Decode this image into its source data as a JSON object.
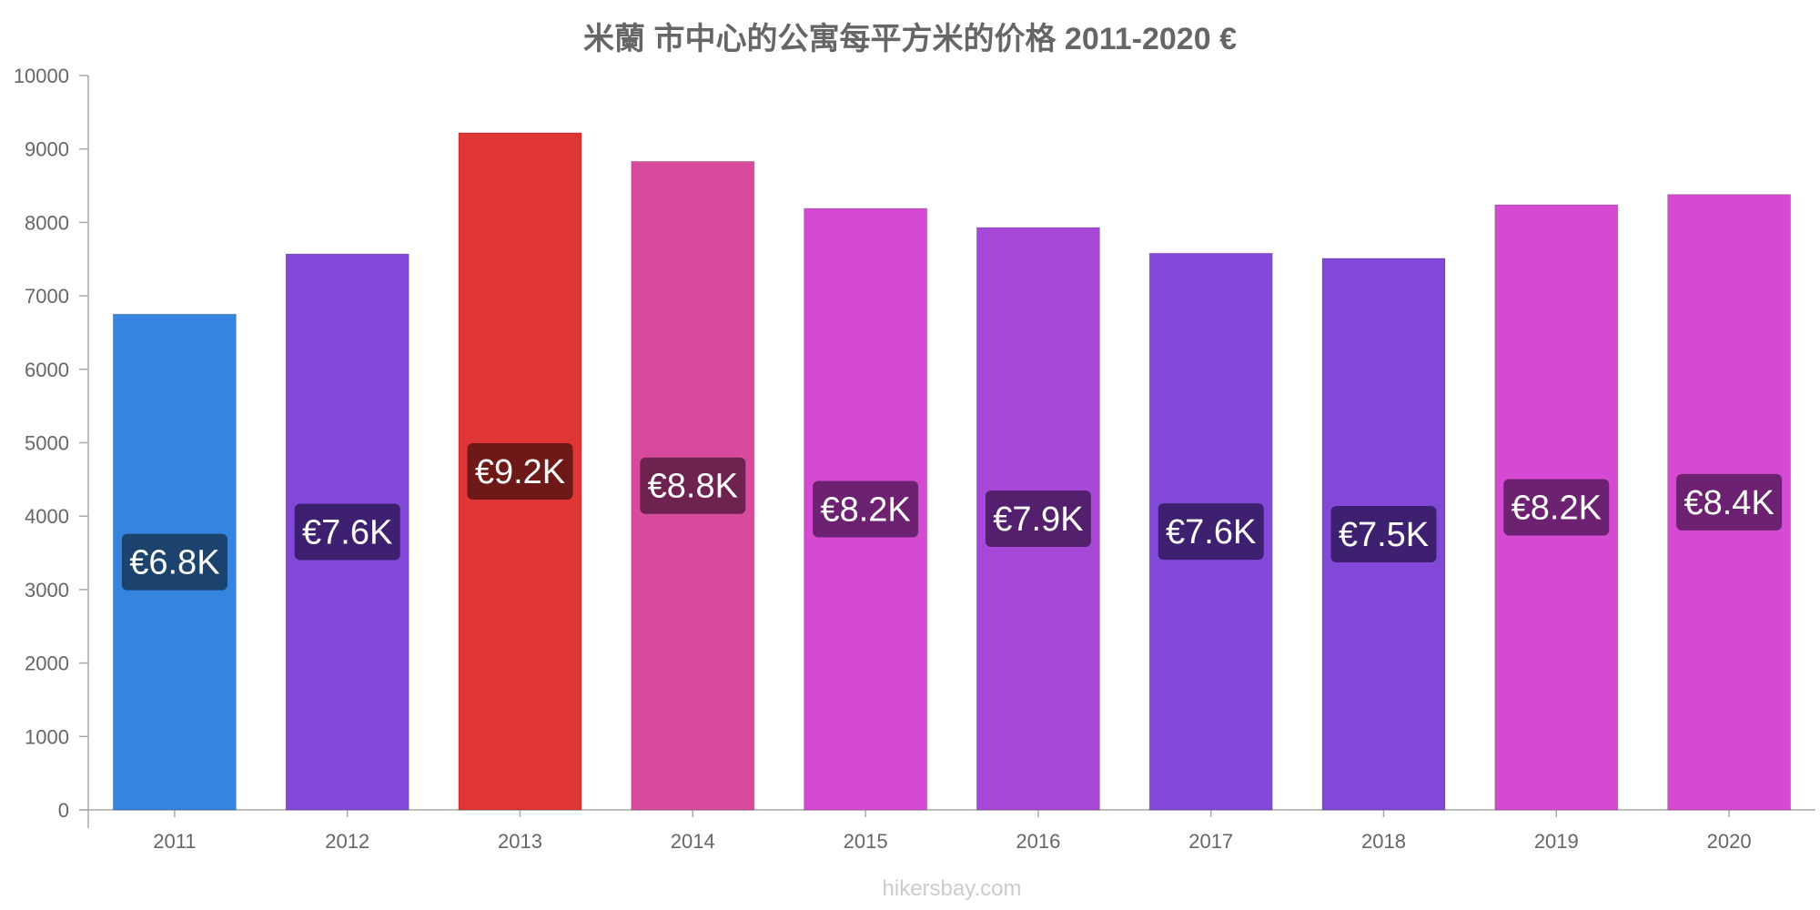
{
  "chart_data": {
    "type": "bar",
    "title": "米蘭 市中心的公寓每平方米的价格 2011-2020 €",
    "xlabel": "",
    "ylabel": "",
    "ylim": [
      0,
      10000
    ],
    "y_ticks": [
      0,
      1000,
      2000,
      3000,
      4000,
      5000,
      6000,
      7000,
      8000,
      9000,
      10000
    ],
    "grid": false,
    "categories": [
      "2011",
      "2012",
      "2013",
      "2014",
      "2015",
      "2016",
      "2017",
      "2018",
      "2019",
      "2020"
    ],
    "values": [
      6750,
      7570,
      9220,
      8830,
      8190,
      7930,
      7580,
      7510,
      8240,
      8380
    ],
    "data_labels": [
      "€6.8K",
      "€7.6K",
      "€9.2K",
      "€8.8K",
      "€8.2K",
      "€7.9K",
      "€7.6K",
      "€7.5K",
      "€8.2K",
      "€8.4K"
    ],
    "bar_colors": [
      "#3584e0",
      "#8249d9",
      "#e03535",
      "#d84a9b",
      "#d54ad2",
      "#a848d8",
      "#8249d9",
      "#8249d9",
      "#d54ad2",
      "#d54ad2"
    ],
    "label_bg_colors": [
      "#1c436e",
      "#3d2170",
      "#6e1818",
      "#6e2250",
      "#6c2270",
      "#54206e",
      "#3d2170",
      "#3d2170",
      "#6c2270",
      "#6c2270"
    ]
  },
  "watermark": "hikersbay.com"
}
